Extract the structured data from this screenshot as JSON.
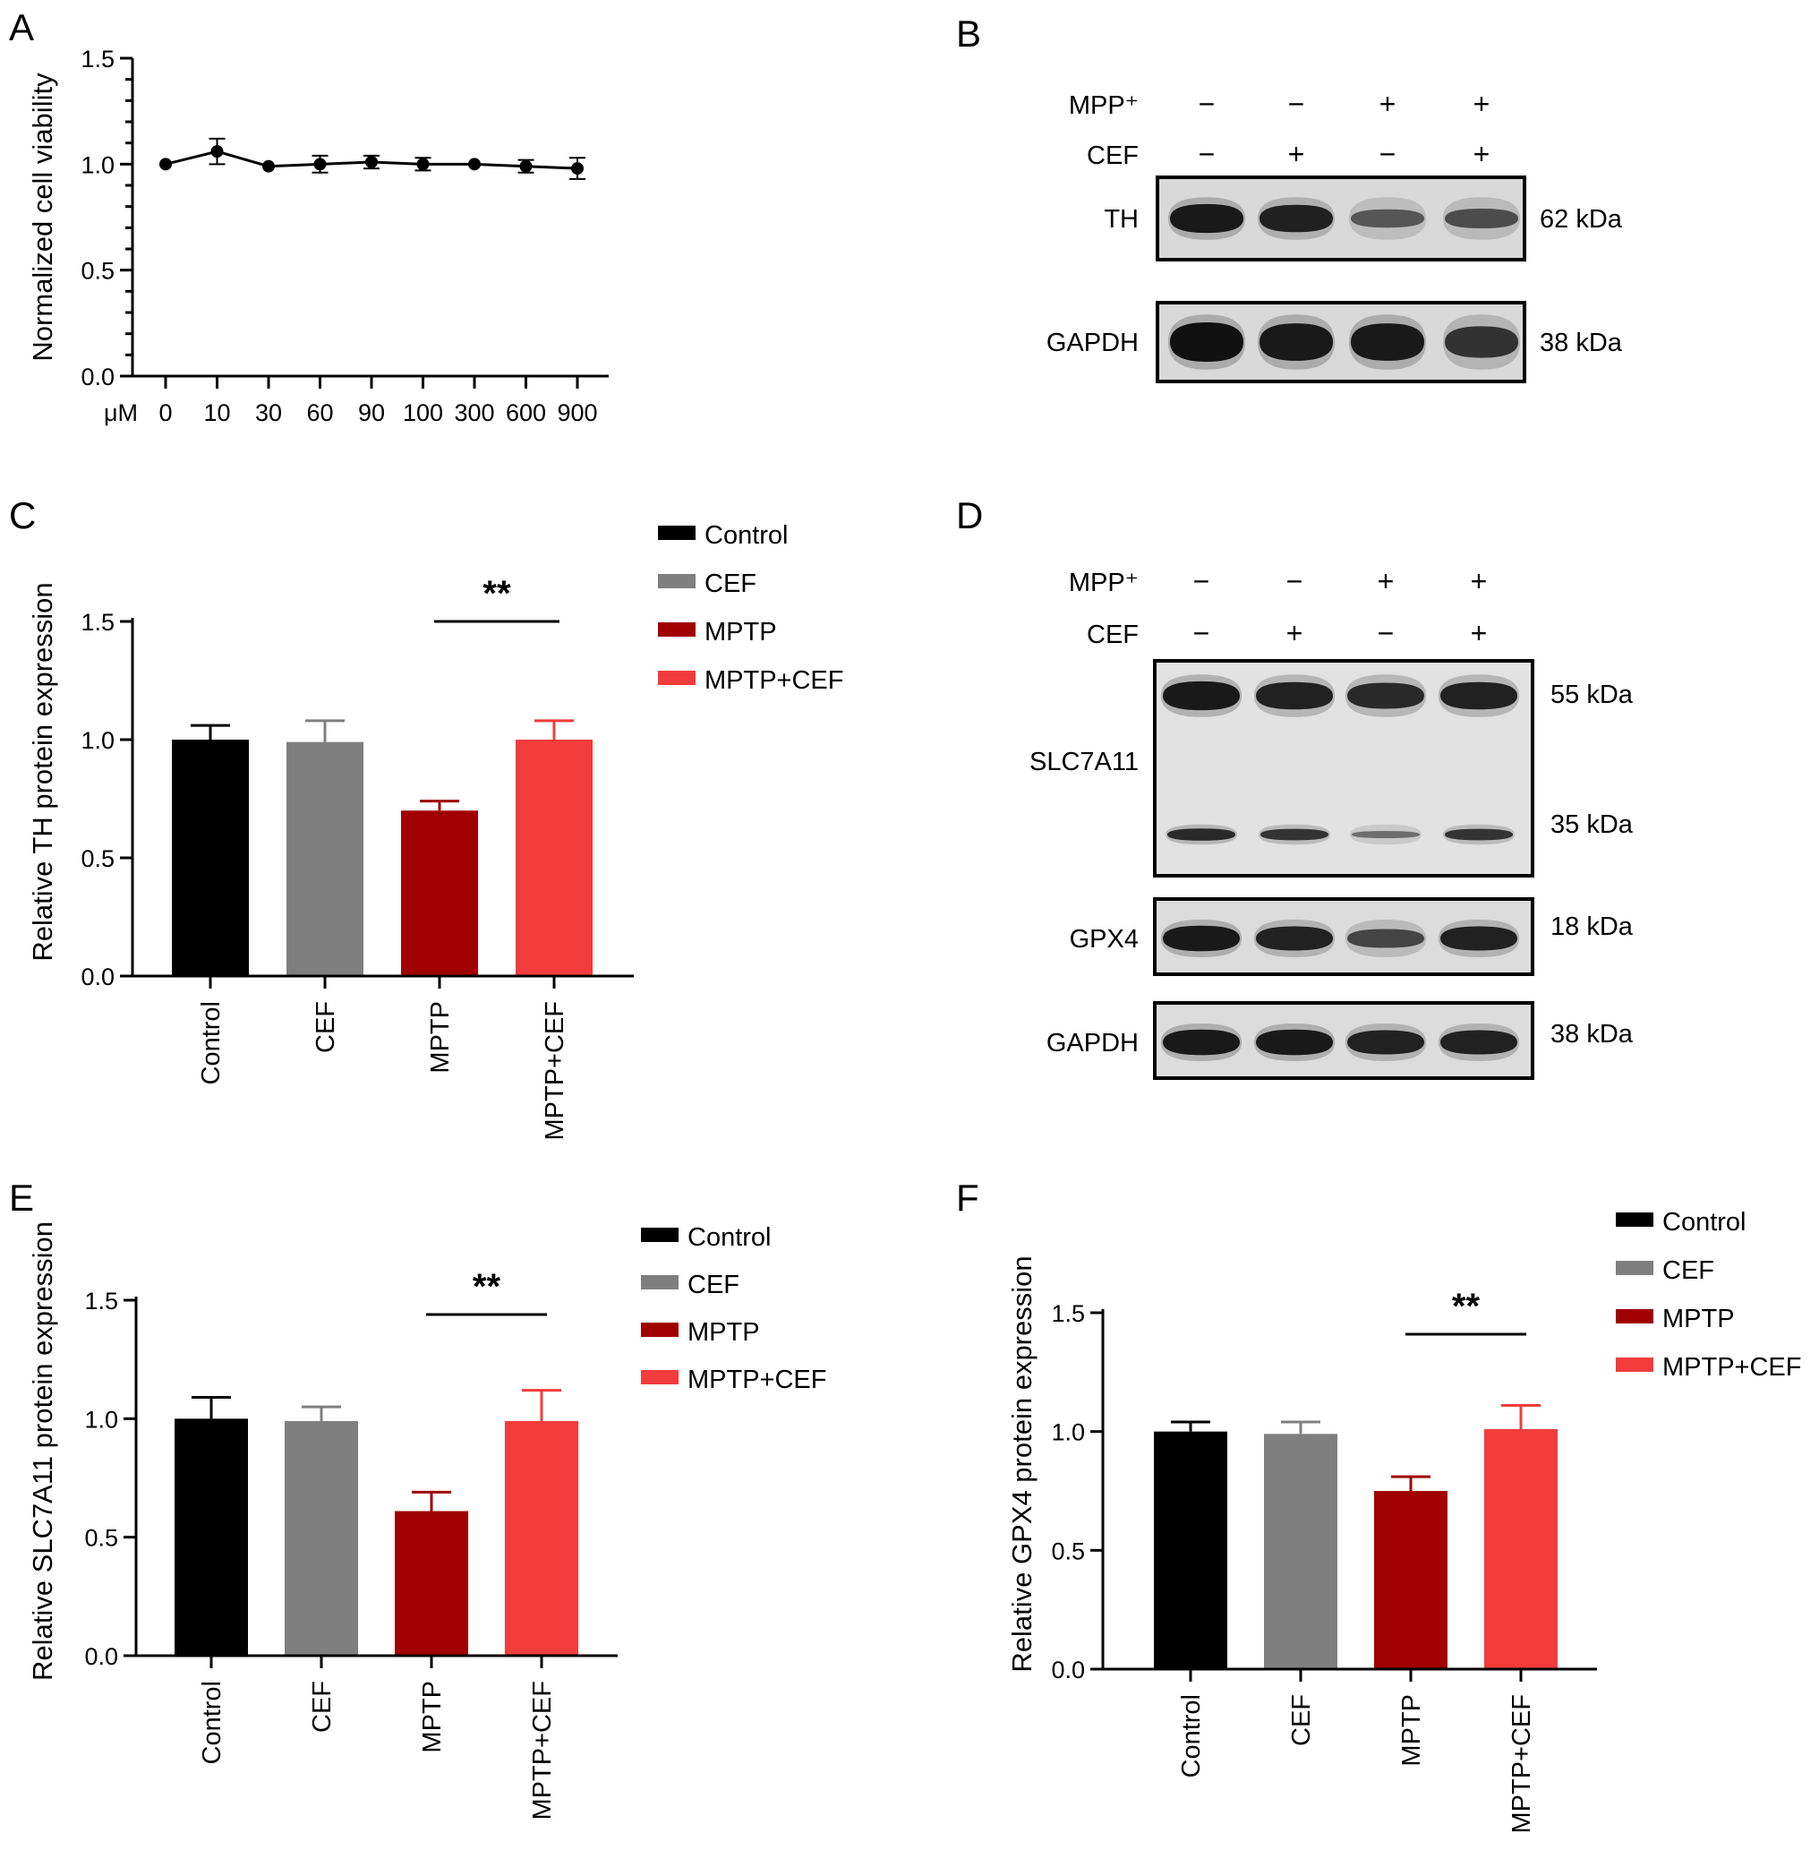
{
  "panel_letters": {
    "A": "A",
    "B": "B",
    "C": "C",
    "D": "D",
    "E": "E",
    "F": "F"
  },
  "colors": {
    "control": "#000000",
    "cef": "#7f7f7f",
    "mptp": "#a00000",
    "mptp_cef": "#f23c3c"
  },
  "chart_data": [
    {
      "panel": "A",
      "type": "line",
      "ylabel": "Normalized cell viability",
      "xunit": "μM",
      "categories": [
        "0",
        "10",
        "30",
        "60",
        "90",
        "100",
        "300",
        "600",
        "900"
      ],
      "values": [
        1.0,
        1.06,
        0.99,
        1.0,
        1.01,
        1.0,
        1.0,
        0.99,
        0.98
      ],
      "errors": [
        0.0,
        0.06,
        0.0,
        0.04,
        0.03,
        0.03,
        0.0,
        0.03,
        0.05
      ],
      "ylim": [
        0,
        1.5
      ],
      "yticks": [
        "0.0",
        "0.5",
        "1.0",
        "1.5"
      ]
    },
    {
      "panel": "C",
      "type": "bar",
      "ylabel": "Relative TH protein expression",
      "categories": [
        "Control",
        "CEF",
        "MPTP",
        "MPTP+CEF"
      ],
      "values": [
        1.0,
        0.99,
        0.7,
        1.0
      ],
      "errors": [
        0.06,
        0.09,
        0.04,
        0.08
      ],
      "ylim": [
        0,
        1.5
      ],
      "yticks": [
        "0.0",
        "0.5",
        "1.0",
        "1.5"
      ],
      "legend": [
        "Control",
        "CEF",
        "MPTP",
        "MPTP+CEF"
      ],
      "significance": "**"
    },
    {
      "panel": "E",
      "type": "bar",
      "ylabel": "Relative SLC7A11 protein expression",
      "categories": [
        "Control",
        "CEF",
        "MPTP",
        "MPTP+CEF"
      ],
      "values": [
        1.0,
        0.99,
        0.61,
        0.99
      ],
      "errors": [
        0.09,
        0.06,
        0.08,
        0.13
      ],
      "ylim": [
        0,
        1.5
      ],
      "yticks": [
        "0.0",
        "0.5",
        "1.0",
        "1.5"
      ],
      "legend": [
        "Control",
        "CEF",
        "MPTP",
        "MPTP+CEF"
      ],
      "significance": "**"
    },
    {
      "panel": "F",
      "type": "bar",
      "ylabel": "Relative GPX4 protein expression",
      "categories": [
        "Control",
        "CEF",
        "MPTP",
        "MPTP+CEF"
      ],
      "values": [
        1.0,
        0.99,
        0.75,
        1.01
      ],
      "errors": [
        0.04,
        0.05,
        0.06,
        0.1
      ],
      "ylim": [
        0,
        1.5
      ],
      "yticks": [
        "0.0",
        "0.5",
        "1.0",
        "1.5"
      ],
      "legend": [
        "Control",
        "CEF",
        "MPTP",
        "MPTP+CEF"
      ],
      "significance": "**"
    }
  ],
  "blots": {
    "B": {
      "mpp_label": "MPP⁺",
      "cef_label": "CEF",
      "mpp": [
        "−",
        "−",
        "+",
        "+"
      ],
      "cef": [
        "−",
        "+",
        "−",
        "+"
      ],
      "bands": [
        {
          "label": "TH",
          "kda": "62 kDa",
          "intensity": [
            0.95,
            0.9,
            0.6,
            0.65
          ]
        },
        {
          "label": "GAPDH",
          "kda": "38 kDa",
          "intensity": [
            1.0,
            0.95,
            0.95,
            0.8
          ]
        }
      ]
    },
    "D": {
      "mpp_label": "MPP⁺",
      "cef_label": "CEF",
      "mpp": [
        "−",
        "−",
        "+",
        "+"
      ],
      "cef": [
        "−",
        "+",
        "−",
        "+"
      ],
      "bands": [
        {
          "label": "SLC7A11",
          "kda_top": "55 kDa",
          "kda_bottom": "35 kDa",
          "intensity_top": [
            0.95,
            0.9,
            0.85,
            0.9
          ],
          "intensity_bottom": [
            0.85,
            0.8,
            0.5,
            0.8
          ]
        },
        {
          "label": "GPX4",
          "kda": "18 kDa",
          "intensity": [
            0.95,
            0.9,
            0.7,
            0.9
          ]
        },
        {
          "label": "GAPDH",
          "kda": "38 kDa",
          "intensity": [
            0.95,
            0.95,
            0.9,
            0.9
          ]
        }
      ]
    }
  }
}
